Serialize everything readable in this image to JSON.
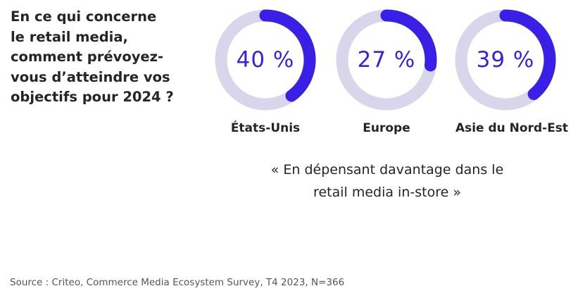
{
  "question": {
    "lines": [
      "En ce qui concerne",
      "le retail media,",
      "comment prévoyez-",
      "vous d’atteindre vos",
      "objectifs pour 2024 ?"
    ]
  },
  "chart_data": {
    "type": "pie",
    "title": "",
    "colors": {
      "value": "#3a1fe6",
      "track": "#d7d6ea"
    },
    "categories": [
      "États-Unis",
      "Europe",
      "Asie du Nord-Est"
    ],
    "values": [
      40,
      27,
      39
    ],
    "value_labels": [
      "40 %",
      "27 %",
      "39 %"
    ],
    "annotation": {
      "lines": [
        "« En dépensant davantage dans le",
        "retail media in-store »"
      ]
    }
  },
  "source": "Source : Criteo, Commerce Media Ecosystem Survey, T4 2023, N=366"
}
